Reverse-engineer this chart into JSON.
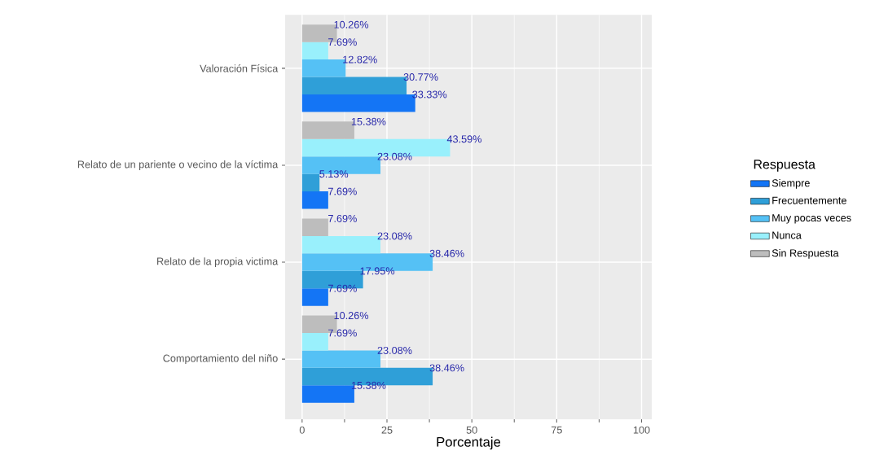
{
  "chart_data": {
    "type": "bar",
    "orientation": "horizontal",
    "xlabel": "Porcentaje",
    "legend_title": "Respuesta",
    "categories": [
      "Valoración Física",
      "Relato de un pariente o vecino de la víctima",
      "Relato de la propia victima",
      "Comportamiento del niño"
    ],
    "series": [
      {
        "name": "Siempre",
        "color": "#1475f5",
        "values": [
          33.33,
          7.69,
          7.69,
          15.38
        ],
        "value_labels": [
          "33.33%",
          "7.69%",
          "7.69%",
          "15.38%"
        ]
      },
      {
        "name": "Frecuentemente",
        "color": "#2f9fd8",
        "values": [
          30.77,
          5.13,
          17.95,
          38.46
        ],
        "value_labels": [
          "30.77%",
          "5.13%",
          "17.95%",
          "38.46%"
        ]
      },
      {
        "name": "Muy pocas veces",
        "color": "#55c1f5",
        "values": [
          12.82,
          23.08,
          38.46,
          23.08
        ],
        "value_labels": [
          "12.82%",
          "23.08%",
          "38.46%",
          "23.08%"
        ]
      },
      {
        "name": "Nunca",
        "color": "#99f0fc",
        "values": [
          7.69,
          43.59,
          23.08,
          7.69
        ],
        "value_labels": [
          "7.69%",
          "43.59%",
          "23.08%",
          "7.69%"
        ]
      },
      {
        "name": "Sin Respuesta",
        "color": "#bdbdbd",
        "values": [
          10.26,
          15.38,
          7.69,
          10.26
        ],
        "value_labels": [
          "10.26%",
          "15.38%",
          "7.69%",
          "10.26%"
        ]
      }
    ],
    "xlim": [
      -5,
      103
    ],
    "xticks": [
      0,
      25,
      50,
      75,
      100
    ],
    "grid": true,
    "legend": "right"
  }
}
